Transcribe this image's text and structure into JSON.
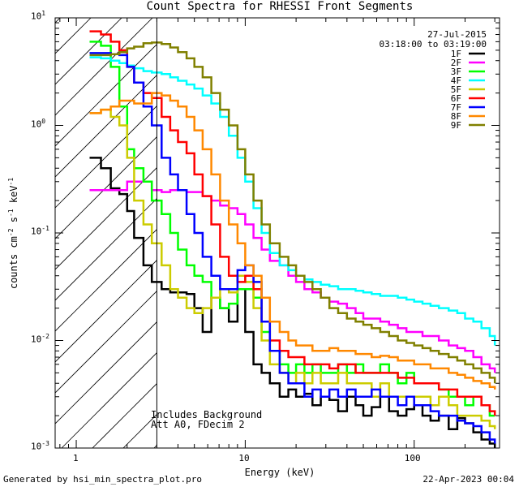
{
  "chart_data": {
    "type": "line",
    "title": "Count Spectra for RHESSI Front Segments",
    "xlabel": "Energy (keV)",
    "ylabel": "counts cm-2 s-1 keV-1",
    "xscale": "log",
    "yscale": "log",
    "xlim": [
      0.75,
      320
    ],
    "ylim": [
      0.001,
      10
    ],
    "x_tick_labels": [
      "1",
      "10",
      "100"
    ],
    "y_tick_labels": [
      "10-3",
      "10-2",
      "10-1",
      "100",
      "101"
    ],
    "date": "27-Jul-2015",
    "time_range": "03:18:00 to 03:19:00",
    "annotations": [
      "Includes Background",
      "Att A0, FDecim 2"
    ],
    "shaded_region_upper_keV": 3,
    "series": [
      {
        "name": "1F",
        "color": "#000000",
        "x": [
          1.2,
          1.4,
          1.6,
          1.8,
          2.0,
          2.2,
          2.5,
          2.8,
          3.2,
          3.6,
          4.0,
          4.5,
          5.0,
          5.6,
          6.3,
          7.1,
          8.0,
          9.0,
          10.0,
          11.2,
          12.5,
          14,
          16,
          18,
          20,
          22.4,
          25,
          28,
          31.5,
          35.5,
          40,
          45,
          50,
          56,
          63,
          71,
          80,
          90,
          100,
          112,
          125,
          140,
          160,
          180,
          200,
          224,
          250,
          280,
          300
        ],
        "values": [
          0.5,
          0.4,
          0.26,
          0.23,
          0.16,
          0.09,
          0.05,
          0.035,
          0.03,
          0.028,
          0.028,
          0.027,
          0.02,
          0.012,
          0.025,
          0.02,
          0.015,
          0.03,
          0.012,
          0.006,
          0.005,
          0.004,
          0.003,
          0.0035,
          0.003,
          0.0032,
          0.0025,
          0.003,
          0.0028,
          0.0022,
          0.003,
          0.0025,
          0.002,
          0.0024,
          0.003,
          0.0022,
          0.002,
          0.0023,
          0.0025,
          0.002,
          0.0018,
          0.002,
          0.0015,
          0.0019,
          0.0017,
          0.0014,
          0.0012,
          0.0011,
          0.001
        ]
      },
      {
        "name": "2F",
        "color": "#ff00ff",
        "x": [
          1.2,
          1.4,
          1.6,
          1.8,
          2.0,
          2.2,
          2.5,
          2.8,
          3.2,
          3.6,
          4.0,
          4.5,
          5.0,
          5.6,
          6.3,
          7.1,
          8.0,
          9.0,
          10.0,
          11.2,
          12.5,
          14,
          16,
          18,
          20,
          22.4,
          25,
          28,
          31.5,
          35.5,
          40,
          45,
          50,
          56,
          63,
          71,
          80,
          90,
          100,
          112,
          125,
          140,
          160,
          180,
          200,
          224,
          250,
          280,
          300
        ],
        "values": [
          0.25,
          0.25,
          0.25,
          0.25,
          0.3,
          0.3,
          0.3,
          0.25,
          0.24,
          0.25,
          0.25,
          0.24,
          0.24,
          0.22,
          0.2,
          0.18,
          0.17,
          0.15,
          0.12,
          0.09,
          0.07,
          0.055,
          0.05,
          0.04,
          0.035,
          0.03,
          0.028,
          0.025,
          0.023,
          0.022,
          0.02,
          0.018,
          0.016,
          0.016,
          0.015,
          0.014,
          0.013,
          0.012,
          0.012,
          0.011,
          0.011,
          0.01,
          0.009,
          0.0085,
          0.008,
          0.007,
          0.006,
          0.0055,
          0.005
        ]
      },
      {
        "name": "3F",
        "color": "#00ff00",
        "x": [
          1.2,
          1.4,
          1.6,
          1.8,
          2.0,
          2.2,
          2.5,
          2.8,
          3.2,
          3.6,
          4.0,
          4.5,
          5.0,
          5.6,
          6.3,
          7.1,
          8.0,
          9.0,
          10.0,
          11.2,
          12.5,
          14,
          16,
          18,
          20,
          22.4,
          25,
          28,
          31.5,
          35.5,
          40,
          45,
          50,
          56,
          63,
          71,
          80,
          90,
          100,
          112,
          125,
          140,
          160,
          180,
          200,
          224,
          250,
          280,
          300
        ],
        "values": [
          6.0,
          5.5,
          3.5,
          1.5,
          0.6,
          0.4,
          0.3,
          0.2,
          0.15,
          0.1,
          0.07,
          0.05,
          0.04,
          0.035,
          0.025,
          0.02,
          0.022,
          0.03,
          0.03,
          0.025,
          0.012,
          0.008,
          0.006,
          0.005,
          0.006,
          0.005,
          0.006,
          0.005,
          0.005,
          0.006,
          0.005,
          0.006,
          0.005,
          0.005,
          0.006,
          0.005,
          0.004,
          0.005,
          0.004,
          0.004,
          0.004,
          0.0035,
          0.003,
          0.003,
          0.0025,
          0.003,
          0.0025,
          0.002,
          0.002
        ]
      },
      {
        "name": "4F",
        "color": "#00ffff",
        "x": [
          1.2,
          1.4,
          1.6,
          1.8,
          2.0,
          2.2,
          2.5,
          2.8,
          3.2,
          3.6,
          4.0,
          4.5,
          5.0,
          5.6,
          6.3,
          7.1,
          8.0,
          9.0,
          10.0,
          11.2,
          12.5,
          14,
          16,
          18,
          20,
          22.4,
          25,
          28,
          31.5,
          35.5,
          40,
          45,
          50,
          56,
          63,
          71,
          80,
          90,
          100,
          112,
          125,
          140,
          160,
          180,
          200,
          224,
          250,
          280,
          300
        ],
        "values": [
          4.3,
          4.2,
          4.0,
          3.8,
          3.6,
          3.4,
          3.2,
          3.1,
          3.0,
          2.8,
          2.6,
          2.4,
          2.2,
          1.9,
          1.6,
          1.2,
          0.8,
          0.5,
          0.3,
          0.17,
          0.1,
          0.065,
          0.05,
          0.045,
          0.04,
          0.037,
          0.035,
          0.033,
          0.032,
          0.03,
          0.03,
          0.029,
          0.028,
          0.027,
          0.026,
          0.026,
          0.025,
          0.024,
          0.023,
          0.022,
          0.021,
          0.02,
          0.019,
          0.018,
          0.016,
          0.015,
          0.013,
          0.011,
          0.009
        ]
      },
      {
        "name": "5F",
        "color": "#cccc00",
        "x": [
          1.2,
          1.4,
          1.6,
          1.8,
          2.0,
          2.2,
          2.5,
          2.8,
          3.2,
          3.6,
          4.0,
          4.5,
          5.0,
          5.6,
          6.3,
          7.1,
          8.0,
          9.0,
          10.0,
          11.2,
          12.5,
          14,
          16,
          18,
          20,
          22.4,
          25,
          28,
          31.5,
          35.5,
          40,
          45,
          50,
          56,
          63,
          71,
          80,
          90,
          100,
          112,
          125,
          140,
          160,
          180,
          200,
          224,
          250,
          280,
          300
        ],
        "values": [
          1.3,
          1.4,
          1.2,
          1.0,
          0.5,
          0.2,
          0.12,
          0.08,
          0.05,
          0.03,
          0.025,
          0.02,
          0.018,
          0.02,
          0.025,
          0.03,
          0.028,
          0.04,
          0.035,
          0.02,
          0.01,
          0.006,
          0.005,
          0.004,
          0.005,
          0.004,
          0.005,
          0.004,
          0.004,
          0.005,
          0.004,
          0.004,
          0.004,
          0.003,
          0.004,
          0.003,
          0.003,
          0.003,
          0.003,
          0.003,
          0.0025,
          0.003,
          0.0025,
          0.002,
          0.002,
          0.002,
          0.0018,
          0.0016,
          0.0015
        ]
      },
      {
        "name": "6F",
        "color": "#ff0000",
        "x": [
          1.2,
          1.4,
          1.6,
          1.8,
          2.0,
          2.2,
          2.5,
          2.8,
          3.2,
          3.6,
          4.0,
          4.5,
          5.0,
          5.6,
          6.3,
          7.1,
          8.0,
          9.0,
          10.0,
          11.2,
          12.5,
          14,
          16,
          18,
          20,
          22.4,
          25,
          28,
          31.5,
          35.5,
          40,
          45,
          50,
          56,
          63,
          71,
          80,
          90,
          100,
          112,
          125,
          140,
          160,
          180,
          200,
          224,
          250,
          280,
          300
        ],
        "values": [
          7.5,
          7.0,
          6.0,
          5.0,
          3.5,
          2.5,
          2.0,
          1.8,
          1.2,
          0.9,
          0.7,
          0.55,
          0.35,
          0.22,
          0.12,
          0.06,
          0.04,
          0.035,
          0.04,
          0.03,
          0.015,
          0.01,
          0.008,
          0.007,
          0.007,
          0.006,
          0.006,
          0.006,
          0.0055,
          0.006,
          0.006,
          0.005,
          0.005,
          0.005,
          0.005,
          0.005,
          0.0045,
          0.0045,
          0.004,
          0.004,
          0.004,
          0.0035,
          0.0035,
          0.003,
          0.003,
          0.003,
          0.0025,
          0.0022,
          0.002
        ]
      },
      {
        "name": "7F",
        "color": "#0000ff",
        "x": [
          1.2,
          1.4,
          1.6,
          1.8,
          2.0,
          2.2,
          2.5,
          2.8,
          3.2,
          3.6,
          4.0,
          4.5,
          5.0,
          5.6,
          6.3,
          7.1,
          8.0,
          9.0,
          10.0,
          11.2,
          12.5,
          14,
          16,
          18,
          20,
          22.4,
          25,
          28,
          31.5,
          35.5,
          40,
          45,
          50,
          56,
          63,
          71,
          80,
          90,
          100,
          112,
          125,
          140,
          160,
          180,
          200,
          224,
          250,
          280,
          300
        ],
        "values": [
          4.7,
          4.7,
          4.6,
          4.5,
          3.5,
          2.5,
          1.5,
          1.0,
          0.5,
          0.35,
          0.25,
          0.15,
          0.1,
          0.06,
          0.04,
          0.03,
          0.03,
          0.045,
          0.05,
          0.035,
          0.015,
          0.008,
          0.005,
          0.004,
          0.004,
          0.003,
          0.0035,
          0.003,
          0.0035,
          0.003,
          0.0035,
          0.003,
          0.003,
          0.0035,
          0.003,
          0.003,
          0.0025,
          0.003,
          0.0025,
          0.0025,
          0.0022,
          0.002,
          0.002,
          0.0018,
          0.0017,
          0.0016,
          0.0014,
          0.0012,
          0.0011
        ]
      },
      {
        "name": "8F",
        "color": "#ff8800",
        "x": [
          1.2,
          1.4,
          1.6,
          1.8,
          2.0,
          2.2,
          2.5,
          2.8,
          3.2,
          3.6,
          4.0,
          4.5,
          5.0,
          5.6,
          6.3,
          7.1,
          8.0,
          9.0,
          10.0,
          11.2,
          12.5,
          14,
          16,
          18,
          20,
          22.4,
          25,
          28,
          31.5,
          35.5,
          40,
          45,
          50,
          56,
          63,
          71,
          80,
          90,
          100,
          112,
          125,
          140,
          160,
          180,
          200,
          224,
          250,
          280,
          300
        ],
        "values": [
          1.3,
          1.4,
          1.5,
          1.7,
          1.7,
          1.6,
          1.6,
          2.0,
          1.9,
          1.7,
          1.5,
          1.2,
          0.9,
          0.6,
          0.35,
          0.2,
          0.12,
          0.08,
          0.05,
          0.04,
          0.025,
          0.015,
          0.012,
          0.01,
          0.009,
          0.009,
          0.008,
          0.008,
          0.0085,
          0.008,
          0.008,
          0.0075,
          0.0075,
          0.007,
          0.0072,
          0.007,
          0.0065,
          0.0065,
          0.006,
          0.006,
          0.0055,
          0.0055,
          0.005,
          0.0048,
          0.0045,
          0.0042,
          0.004,
          0.0037,
          0.0035
        ]
      },
      {
        "name": "9F",
        "color": "#808000",
        "x": [
          1.2,
          1.4,
          1.6,
          1.8,
          2.0,
          2.2,
          2.5,
          2.8,
          3.2,
          3.6,
          4.0,
          4.5,
          5.0,
          5.6,
          6.3,
          7.1,
          8.0,
          9.0,
          10.0,
          11.2,
          12.5,
          14,
          16,
          18,
          20,
          22.4,
          25,
          28,
          31.5,
          35.5,
          40,
          45,
          50,
          56,
          63,
          71,
          80,
          90,
          100,
          112,
          125,
          140,
          160,
          180,
          200,
          224,
          250,
          280,
          300
        ],
        "values": [
          4.5,
          4.5,
          4.6,
          4.8,
          5.2,
          5.4,
          5.8,
          5.9,
          5.7,
          5.3,
          4.8,
          4.2,
          3.5,
          2.8,
          2.0,
          1.4,
          1.0,
          0.6,
          0.35,
          0.2,
          0.12,
          0.08,
          0.06,
          0.05,
          0.04,
          0.035,
          0.03,
          0.025,
          0.02,
          0.018,
          0.016,
          0.015,
          0.014,
          0.013,
          0.012,
          0.011,
          0.01,
          0.0095,
          0.009,
          0.0085,
          0.008,
          0.0075,
          0.007,
          0.0065,
          0.006,
          0.0055,
          0.005,
          0.0045,
          0.004
        ]
      }
    ]
  },
  "footer": {
    "generated_by": "Generated by hsi_min_spectra_plot.pro",
    "timestamp": "22-Apr-2023 00:04"
  }
}
